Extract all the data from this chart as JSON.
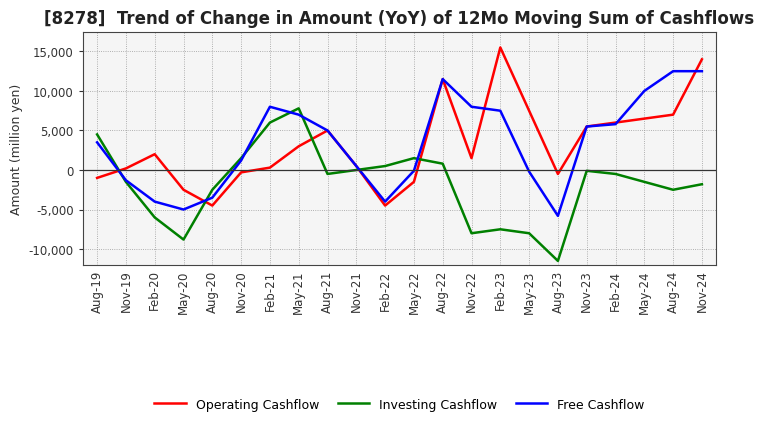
{
  "title": "[8278]  Trend of Change in Amount (YoY) of 12Mo Moving Sum of Cashflows",
  "ylabel": "Amount (million yen)",
  "x_labels": [
    "Aug-19",
    "Nov-19",
    "Feb-20",
    "May-20",
    "Aug-20",
    "Nov-20",
    "Feb-21",
    "May-21",
    "Aug-21",
    "Nov-21",
    "Feb-22",
    "May-22",
    "Aug-22",
    "Nov-22",
    "Feb-23",
    "May-23",
    "Aug-23",
    "Nov-23",
    "Feb-24",
    "May-24",
    "Aug-24",
    "Nov-24"
  ],
  "operating_cashflow": [
    -1000,
    200,
    2000,
    -2500,
    -4500,
    -300,
    300,
    3000,
    5000,
    500,
    -4500,
    -1500,
    11500,
    1500,
    15500,
    7500,
    -500,
    5500,
    6000,
    6500,
    7000,
    14000
  ],
  "investing_cashflow": [
    4500,
    -1500,
    -6000,
    -8800,
    -2500,
    1500,
    6000,
    7800,
    -500,
    0,
    500,
    1500,
    800,
    -8000,
    -7500,
    -8000,
    -11500,
    -100,
    -500,
    -1500,
    -2500,
    -1800
  ],
  "free_cashflow": [
    3500,
    -1300,
    -4000,
    -5000,
    -3500,
    1200,
    8000,
    7000,
    5000,
    500,
    -4000,
    -100,
    11500,
    8000,
    7500,
    -200,
    -5800,
    5500,
    5800,
    10000,
    12500,
    12500
  ],
  "operating_color": "#ff0000",
  "investing_color": "#008000",
  "free_color": "#0000ff",
  "ylim": [
    -12000,
    17500
  ],
  "yticks": [
    -10000,
    -5000,
    0,
    5000,
    10000,
    15000
  ],
  "bg_color": "#ffffff",
  "plot_bg_color": "#f5f5f5",
  "grid_color": "#999999",
  "line_width": 1.8,
  "title_fontsize": 12,
  "axis_fontsize": 8.5,
  "legend_fontsize": 9
}
